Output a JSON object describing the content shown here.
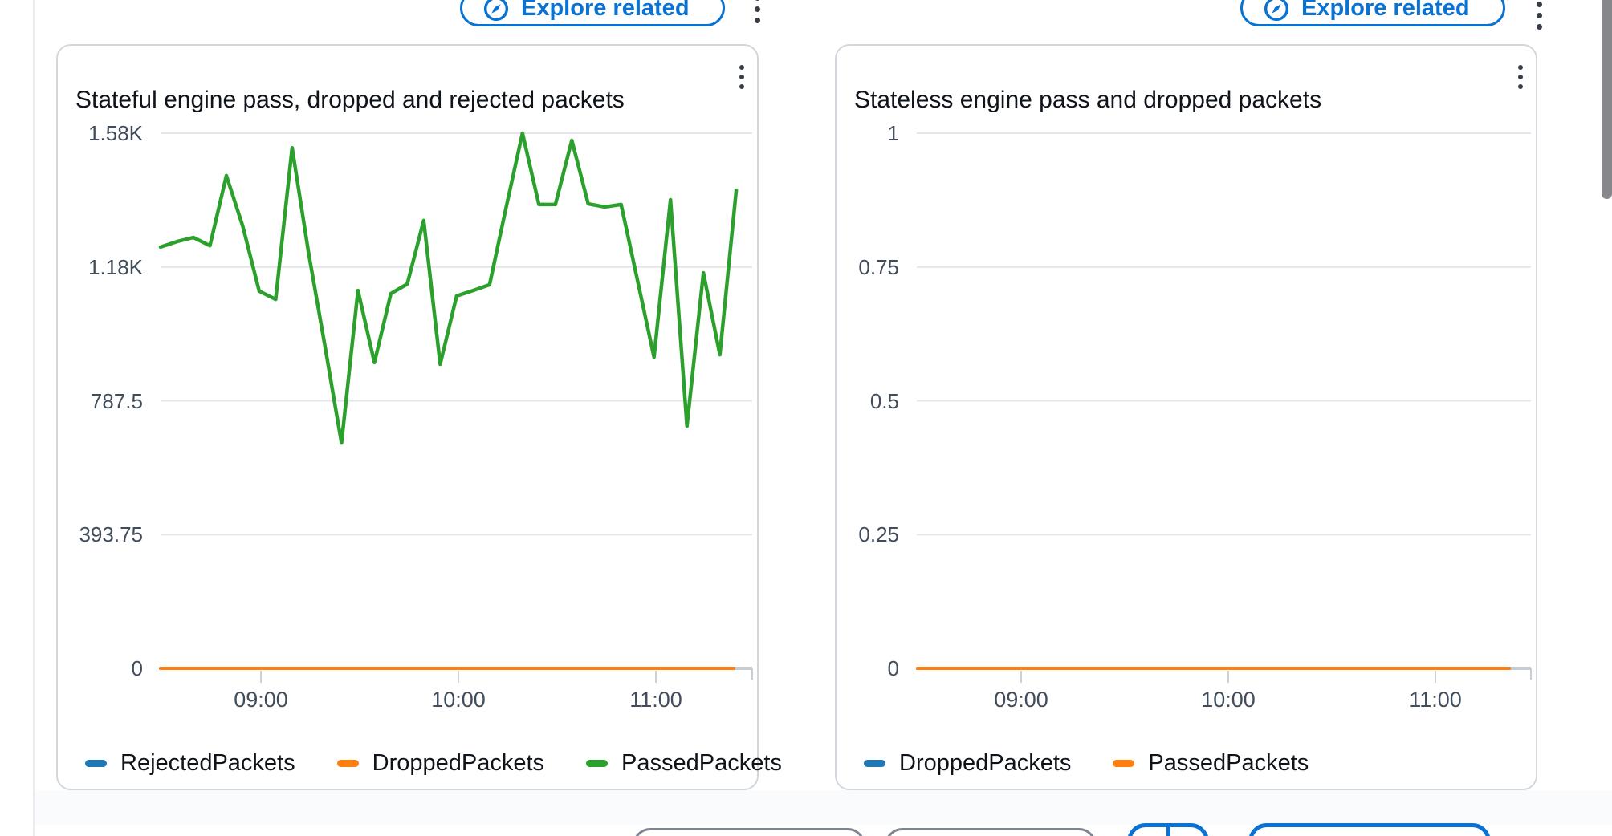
{
  "top_bar": {
    "explore_left_label": "Explore related",
    "explore_right_label": "Explore related"
  },
  "colors": {
    "accent": "#0972d3",
    "grid": "#e2e5e9",
    "axis_stub": "#c7ccd2",
    "series_blue": "#1f77b4",
    "series_orange": "#ff7f0e",
    "series_green": "#2ca02c"
  },
  "chart_data": [
    {
      "type": "line",
      "title": "Stateful engine pass, dropped and rejected packets",
      "ylim": [
        0,
        1575
      ],
      "grid": true,
      "legend_position": "bottom",
      "y_axis": {
        "labels": [
          "1.58K",
          "1.18K",
          "787.5",
          "393.75",
          "0"
        ],
        "values": [
          1575,
          1181.25,
          787.5,
          393.75,
          0
        ]
      },
      "x_tick_labels": [
        "09:00",
        "10:00",
        "11:00"
      ],
      "x_times": [
        "08:30",
        "08:35",
        "08:40",
        "08:45",
        "08:50",
        "08:55",
        "09:00",
        "09:05",
        "09:10",
        "09:15",
        "09:20",
        "09:25",
        "09:30",
        "09:35",
        "09:40",
        "09:45",
        "09:50",
        "09:55",
        "10:00",
        "10:05",
        "10:10",
        "10:15",
        "10:20",
        "10:25",
        "10:30",
        "10:35",
        "10:40",
        "10:45",
        "10:50",
        "10:55",
        "11:00",
        "11:05",
        "11:10",
        "11:15",
        "11:20",
        "11:25"
      ],
      "series": [
        {
          "name": "RejectedPackets",
          "color": "#1f77b4",
          "width": 4,
          "values": [
            0,
            0,
            0,
            0,
            0,
            0,
            0,
            0,
            0,
            0,
            0,
            0,
            0,
            0,
            0,
            0,
            0,
            0,
            0,
            0,
            0,
            0,
            0,
            0,
            0,
            0,
            0,
            0,
            0,
            0,
            0,
            0,
            0,
            0,
            0,
            0
          ]
        },
        {
          "name": "DroppedPackets",
          "color": "#ff7f0e",
          "width": 4,
          "values": [
            0,
            0,
            0,
            0,
            0,
            0,
            0,
            0,
            0,
            0,
            0,
            0,
            0,
            0,
            0,
            0,
            0,
            0,
            0,
            0,
            0,
            0,
            0,
            0,
            0,
            0,
            0,
            0,
            0,
            0,
            0,
            0,
            0,
            0,
            0,
            0
          ]
        },
        {
          "name": "PassedPackets",
          "color": "#2ca02c",
          "width": 4.5,
          "values": [
            1240,
            1256,
            1268,
            1244,
            1450,
            1301,
            1110,
            1086,
            1532,
            1223,
            947,
            663,
            1112,
            900,
            1103,
            1131,
            1318,
            895,
            1096,
            1112,
            1129,
            1355,
            1575,
            1365,
            1365,
            1554,
            1367,
            1358,
            1365,
            1141,
            916,
            1379,
            713,
            1164,
            923,
            1407
          ]
        }
      ]
    },
    {
      "type": "line",
      "title": "Stateless engine pass and dropped packets",
      "ylim": [
        0,
        1
      ],
      "grid": true,
      "legend_position": "bottom",
      "y_axis": {
        "labels": [
          "1",
          "0.75",
          "0.5",
          "0.25",
          "0"
        ],
        "values": [
          1,
          0.75,
          0.5,
          0.25,
          0
        ]
      },
      "x_tick_labels": [
        "09:00",
        "10:00",
        "11:00"
      ],
      "x_times": [
        "08:30",
        "08:35",
        "08:40",
        "08:45",
        "08:50",
        "08:55",
        "09:00",
        "09:05",
        "09:10",
        "09:15",
        "09:20",
        "09:25",
        "09:30",
        "09:35",
        "09:40",
        "09:45",
        "09:50",
        "09:55",
        "10:00",
        "10:05",
        "10:10",
        "10:15",
        "10:20",
        "10:25",
        "10:30",
        "10:35",
        "10:40",
        "10:45",
        "10:50",
        "10:55",
        "11:00",
        "11:05",
        "11:10",
        "11:15",
        "11:20",
        "11:25"
      ],
      "series": [
        {
          "name": "DroppedPackets",
          "color": "#1f77b4",
          "width": 4,
          "values": [
            0,
            0,
            0,
            0,
            0,
            0,
            0,
            0,
            0,
            0,
            0,
            0,
            0,
            0,
            0,
            0,
            0,
            0,
            0,
            0,
            0,
            0,
            0,
            0,
            0,
            0,
            0,
            0,
            0,
            0,
            0,
            0,
            0,
            0,
            0,
            0
          ]
        },
        {
          "name": "PassedPackets",
          "color": "#ff7f0e",
          "width": 4,
          "values": [
            0,
            0,
            0,
            0,
            0,
            0,
            0,
            0,
            0,
            0,
            0,
            0,
            0,
            0,
            0,
            0,
            0,
            0,
            0,
            0,
            0,
            0,
            0,
            0,
            0,
            0,
            0,
            0,
            0,
            0,
            0,
            0,
            0,
            0,
            0,
            0
          ]
        }
      ]
    }
  ]
}
